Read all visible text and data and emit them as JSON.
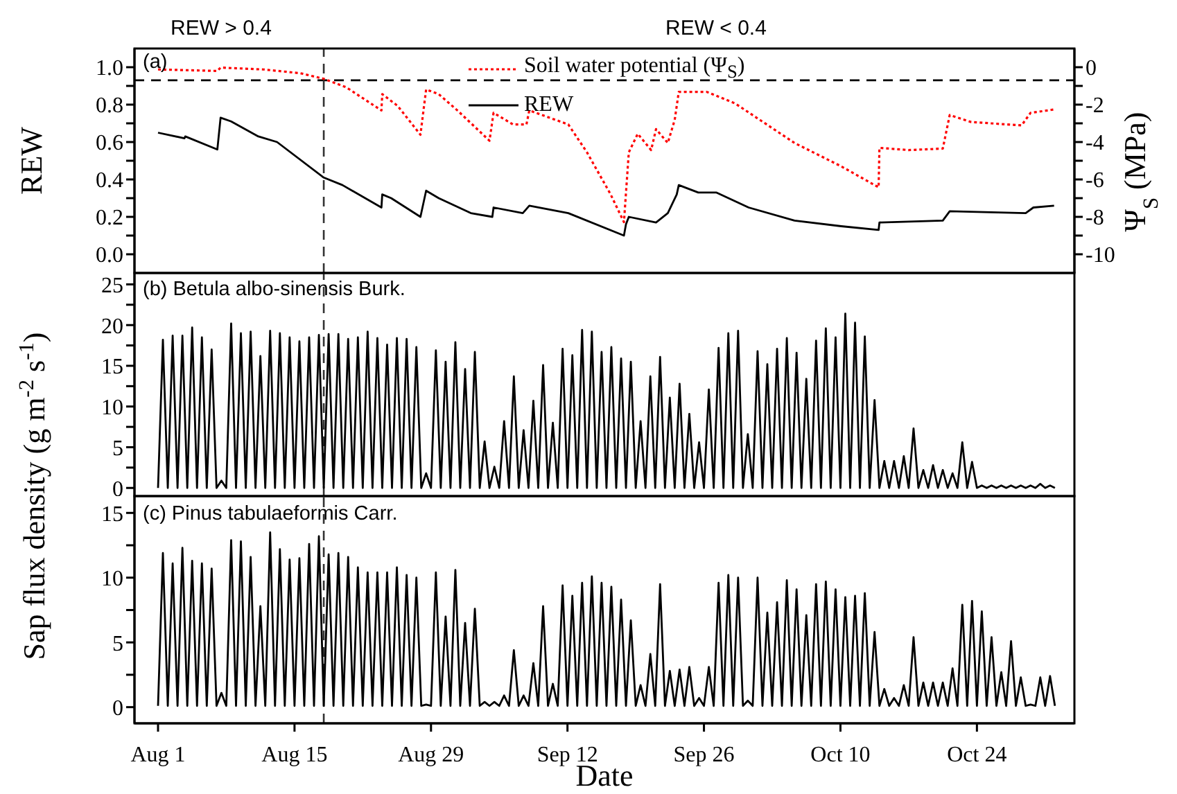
{
  "chart_data": [
    {
      "type": "line",
      "ylabel": "REW",
      "y2label": "Ψ$_{S}$ (MPa)",
      "annotations": [
        "(a)",
        "REW > 0.4",
        "REW < 0.4"
      ],
      "xlim": [
        "--07-29T14:00",
        "--11-03"
      ],
      "xticks": [
        {
          "value": "--08-01",
          "label": null
        },
        {
          "value": "--08-15",
          "label": null
        },
        {
          "value": "--08-29",
          "label": null
        },
        {
          "value": "--09-12",
          "label": null
        },
        {
          "value": "--09-26",
          "label": null
        },
        {
          "value": "--10-10",
          "label": null
        },
        {
          "value": "--10-24",
          "label": null
        }
      ],
      "ylim": [
        -0.1,
        1.1
      ],
      "yticks": [
        {
          "value": 0,
          "label": "0.0"
        },
        {
          "value": 0.1,
          "label": null
        },
        0.2,
        {
          "value": 0.3,
          "label": null
        },
        0.4,
        {
          "value": 0.5,
          "label": null
        },
        0.6,
        {
          "value": 0.7,
          "label": null
        },
        0.8,
        {
          "value": 0.9,
          "label": null
        },
        {
          "value": 1,
          "label": "1.0"
        }
      ],
      "y2lim": [
        -11,
        1
      ],
      "y2ticks": [
        -10,
        {
          "value": -9,
          "label": null
        },
        -8,
        {
          "value": -7,
          "label": null
        },
        -6,
        {
          "value": -5,
          "label": null
        },
        -4,
        {
          "value": -3,
          "label": null
        },
        -2,
        {
          "value": -1,
          "label": null
        },
        0
      ],
      "tick_labels": "y",
      "legend": "top",
      "ref_lines": [
        {
          "axis": "y",
          "value": 0.93,
          "color": "#000000",
          "line_style": "dashed"
        },
        {
          "axis": "x",
          "value": "--08-18",
          "color": "#333333",
          "line_style": "dashed"
        }
      ],
      "series": [
        {
          "name": "Soil water potential (Ψ$_{S}$)",
          "color": "#ff0000",
          "axis": "y2",
          "line_style": "dotted",
          "x": [
            "--08-01",
            "--08-07T02:00",
            "--08-07T10:00",
            "--08-11T19:00",
            "--08-15T14:00",
            "--08-18",
            "--08-20T07:00",
            "--08-23T22:00",
            "--08-24",
            "--08-25T14:00",
            "--08-27T22:00",
            "--08-28T12:00",
            "--08-29T19:00",
            "--08-31T17:00",
            "--09-04",
            "--09-04T10:00",
            "--09-06T10:00",
            "--09-07T19:00",
            "--09-08T02:00",
            "--09-12T02:00",
            "--09-14",
            "--09-16T10:00",
            "--09-17T19:00",
            "--09-18T07:00",
            "--09-19T05:00",
            "--09-20T14:00",
            "--09-21T02:00",
            "--09-22T07:00",
            "--09-23",
            "--09-23T10:00",
            "--09-26T07:00",
            "--09-29T05:00",
            "--10-05T07:00",
            "--10-10T02:00",
            "--10-13T22:00",
            "--10-14",
            "--10-17",
            "--10-20T12:00",
            "--10-21T05:00",
            "--10-23T10:00",
            "--10-28T14:00",
            "--10-29T12:00",
            "--10-31T22:00"
          ],
          "values": [
            -0.12,
            -0.2,
            -0.02,
            -0.12,
            -0.32,
            -0.62,
            -1.07,
            -2.31,
            -1.44,
            -2.07,
            -3.61,
            -1.19,
            -1.44,
            -2.31,
            -3.93,
            -2.44,
            -3.06,
            -3.06,
            -2.31,
            -3.06,
            -4.55,
            -6.79,
            -8.28,
            -4.55,
            -3.56,
            -4.43,
            -3.31,
            -4.05,
            -2.81,
            -1.32,
            -1.32,
            -1.94,
            -4.05,
            -5.3,
            -6.42,
            -4.31,
            -4.43,
            -4.35,
            -2.56,
            -2.93,
            -3.11,
            -2.44,
            -2.26
          ]
        },
        {
          "name": "REW",
          "color": "#000000",
          "line_style": "solid",
          "x": [
            "--08-01",
            "--08-03T17:00",
            "--08-03T19:00",
            "--08-07T02:00",
            "--08-07T10:00",
            "--08-08T12:00",
            "--08-11T07:00",
            "--08-13T05:00",
            "--08-18",
            "--08-19T22:00",
            "--08-23T22:00",
            "--08-24",
            "--08-24T22:00",
            "--08-27T22:00",
            "--08-28T12:00",
            "--08-29T19:00",
            "--09-02T02:00",
            "--09-04T07:00",
            "--09-04T10:00",
            "--09-07T10:00",
            "--09-08T02:00",
            "--09-12T02:00",
            "--09-17T19:00",
            "--09-18",
            "--09-18T07:00",
            "--09-21T02:00",
            "--09-22T07:00",
            "--09-23T05:00",
            "--09-23T10:00",
            "--09-25T10:00",
            "--09-27T07:00",
            "--09-30T14:00",
            "--10-05T07:00",
            "--10-10T02:00",
            "--10-13T22:00",
            "--10-14",
            "--10-20T12:00",
            "--10-21T05:00",
            "--10-29",
            "--10-29T19:00",
            "--10-31T22:00"
          ],
          "values": [
            0.65,
            0.62,
            0.63,
            0.56,
            0.73,
            0.71,
            0.63,
            0.6,
            0.41,
            0.37,
            0.25,
            0.32,
            0.3,
            0.2,
            0.34,
            0.3,
            0.22,
            0.2,
            0.25,
            0.22,
            0.26,
            0.22,
            0.1,
            0.16,
            0.2,
            0.17,
            0.22,
            0.32,
            0.37,
            0.33,
            0.33,
            0.25,
            0.18,
            0.15,
            0.13,
            0.17,
            0.18,
            0.23,
            0.22,
            0.25,
            0.26
          ]
        }
      ]
    },
    {
      "type": "line",
      "ylabel": "Sap flux density (g m$^{-2}$ s$^{-1}$)",
      "annotations": [
        "(b) Betula albo-sinensis Burk."
      ],
      "xlim": [
        "--07-29T14:00",
        "--11-03"
      ],
      "xticks": [
        {
          "value": "--08-01",
          "label": null
        },
        {
          "value": "--08-15",
          "label": null
        },
        {
          "value": "--08-29",
          "label": null
        },
        {
          "value": "--09-12",
          "label": null
        },
        {
          "value": "--09-26",
          "label": null
        },
        {
          "value": "--10-10",
          "label": null
        },
        {
          "value": "--10-24",
          "label": null
        }
      ],
      "ylim": [
        -1,
        26.4
      ],
      "yticks": [
        0,
        {
          "value": 2.5,
          "label": null
        },
        5,
        {
          "value": 7.5,
          "label": null
        },
        10,
        {
          "value": 12.5,
          "label": null
        },
        15,
        {
          "value": 17.5,
          "label": null
        },
        20,
        {
          "value": 22.5,
          "label": null
        },
        25
      ],
      "tick_labels": "y",
      "ref_lines": [
        {
          "axis": "x",
          "value": "--08-18",
          "color": "#333333",
          "line_style": "dashed"
        }
      ],
      "x": [
        "--08-01",
        "--08-01T12:00",
        "--08-02",
        "--08-02T12:00",
        "--08-03",
        "--08-03T12:00",
        "--08-04",
        "--08-04T12:00",
        "--08-05",
        "--08-05T12:00",
        "--08-06",
        "--08-06T12:00",
        "--08-07",
        "--08-07T12:00",
        "--08-08",
        "--08-08T12:00",
        "--08-09",
        "--08-09T12:00",
        "--08-10",
        "--08-10T12:00",
        "--08-11",
        "--08-11T12:00",
        "--08-12",
        "--08-12T12:00",
        "--08-13",
        "--08-13T12:00",
        "--08-14",
        "--08-14T12:00",
        "--08-15",
        "--08-15T12:00",
        "--08-16",
        "--08-16T12:00",
        "--08-17",
        "--08-17T12:00",
        "--08-18",
        "--08-18T12:00",
        "--08-19",
        "--08-19T12:00",
        "--08-20",
        "--08-20T12:00",
        "--08-21",
        "--08-21T12:00",
        "--08-22",
        "--08-22T12:00",
        "--08-23",
        "--08-23T12:00",
        "--08-24",
        "--08-24T12:00",
        "--08-25",
        "--08-25T12:00",
        "--08-26",
        "--08-26T12:00",
        "--08-27",
        "--08-27T12:00",
        "--08-28",
        "--08-28T12:00",
        "--08-29",
        "--08-29T12:00",
        "--08-30",
        "--08-30T12:00",
        "--08-31",
        "--08-31T12:00",
        "--09-01",
        "--09-01T12:00",
        "--09-02",
        "--09-02T12:00",
        "--09-03",
        "--09-03T12:00",
        "--09-04",
        "--09-04T12:00",
        "--09-05",
        "--09-05T12:00",
        "--09-06",
        "--09-06T12:00",
        "--09-07",
        "--09-07T12:00",
        "--09-08",
        "--09-08T12:00",
        "--09-09",
        "--09-09T12:00",
        "--09-10",
        "--09-10T12:00",
        "--09-11",
        "--09-11T12:00",
        "--09-12",
        "--09-12T12:00",
        "--09-13",
        "--09-13T12:00",
        "--09-14",
        "--09-14T12:00",
        "--09-15",
        "--09-15T12:00",
        "--09-16",
        "--09-16T12:00",
        "--09-17",
        "--09-17T12:00",
        "--09-18",
        "--09-18T12:00",
        "--09-19",
        "--09-19T12:00",
        "--09-20",
        "--09-20T12:00",
        "--09-21",
        "--09-21T12:00",
        "--09-22",
        "--09-22T12:00",
        "--09-23",
        "--09-23T12:00",
        "--09-24",
        "--09-24T12:00",
        "--09-25",
        "--09-25T12:00",
        "--09-26",
        "--09-26T12:00",
        "--09-27",
        "--09-27T12:00",
        "--09-28",
        "--09-28T12:00",
        "--09-29",
        "--09-29T12:00",
        "--09-30",
        "--09-30T12:00",
        "--10-01",
        "--10-01T12:00",
        "--10-02",
        "--10-02T12:00",
        "--10-03",
        "--10-03T12:00",
        "--10-04",
        "--10-04T12:00",
        "--10-05",
        "--10-05T12:00",
        "--10-06",
        "--10-06T12:00",
        "--10-07",
        "--10-07T12:00",
        "--10-08",
        "--10-08T12:00",
        "--10-09",
        "--10-09T12:00",
        "--10-10",
        "--10-10T12:00",
        "--10-11",
        "--10-11T12:00",
        "--10-12",
        "--10-12T12:00",
        "--10-13",
        "--10-13T12:00",
        "--10-14",
        "--10-14T12:00",
        "--10-15",
        "--10-15T12:00",
        "--10-16",
        "--10-16T12:00",
        "--10-17",
        "--10-17T12:00",
        "--10-18",
        "--10-18T12:00",
        "--10-19",
        "--10-19T12:00",
        "--10-20",
        "--10-20T12:00",
        "--10-21",
        "--10-21T12:00",
        "--10-22",
        "--10-22T12:00",
        "--10-23",
        "--10-23T12:00",
        "--10-24",
        "--10-24T12:00",
        "--10-25",
        "--10-25T12:00",
        "--10-26",
        "--10-26T12:00",
        "--10-27",
        "--10-27T12:00",
        "--10-28",
        "--10-28T12:00",
        "--10-29",
        "--10-29T12:00",
        "--10-30",
        "--10-30T12:00",
        "--10-31",
        "--10-31T12:00",
        "--11-01"
      ],
      "series": [
        {
          "color": "#000000",
          "values": [
            0,
            18.2,
            0,
            18.7,
            0,
            18.7,
            0,
            19.7,
            0,
            18.5,
            0,
            17.0,
            0,
            0.9,
            0,
            20.2,
            0,
            19.0,
            0,
            19.2,
            0,
            16.2,
            0,
            19.3,
            0,
            19.0,
            0,
            18.5,
            0,
            18.0,
            0,
            18.5,
            0,
            18.8,
            0,
            18.9,
            0,
            18.9,
            0,
            18.3,
            0,
            18.5,
            0,
            19.2,
            0,
            18.4,
            0,
            17.6,
            0,
            18.4,
            0,
            18.3,
            0,
            17.3,
            0,
            1.8,
            0,
            16.9,
            0,
            15.5,
            0,
            17.9,
            0,
            14.6,
            0,
            16.7,
            0,
            5.7,
            0,
            2.6,
            0,
            8.2,
            0,
            13.7,
            0,
            7.1,
            0,
            10.7,
            0,
            15.1,
            0,
            8.0,
            0,
            17.1,
            0,
            16.3,
            0,
            19.4,
            0,
            19.2,
            0,
            16.7,
            0,
            17.3,
            0,
            15.9,
            0,
            15.5,
            0,
            8.2,
            0,
            13.7,
            0,
            16.1,
            0,
            11.1,
            0,
            12.8,
            0,
            9.1,
            0,
            5.6,
            0,
            12.1,
            0,
            17.2,
            0,
            19.0,
            0,
            19.3,
            0,
            6.6,
            0,
            16.8,
            0,
            15.2,
            0,
            17.1,
            0,
            18.4,
            0,
            16.6,
            0,
            13.4,
            0,
            18.1,
            0,
            19.6,
            0,
            18.5,
            0,
            21.4,
            0,
            20.3,
            0,
            18.6,
            0,
            10.8,
            0,
            3.3,
            0,
            3.3,
            0,
            3.9,
            0,
            7.3,
            0,
            2.2,
            0,
            2.8,
            0,
            2.2,
            0,
            1.8,
            0,
            5.6,
            0,
            3.2,
            0,
            0.3,
            0,
            0.3,
            0,
            0.3,
            0,
            0.3,
            0,
            0.3,
            0,
            0.3,
            0,
            0.5,
            0,
            0.3,
            0
          ]
        }
      ]
    },
    {
      "type": "line",
      "xlabel": "Date",
      "annotations": [
        "(c) Pinus tabulaeformis  Carr."
      ],
      "xlim": [
        "--07-29T14:00",
        "--11-03"
      ],
      "xticks": [
        {
          "value": "--08-01",
          "label": "Aug 1"
        },
        {
          "value": "--08-15",
          "label": "Aug 15"
        },
        {
          "value": "--08-29",
          "label": "Aug 29"
        },
        {
          "value": "--09-12",
          "label": "Sep 12"
        },
        {
          "value": "--09-26",
          "label": "Sep 26"
        },
        {
          "value": "--10-10",
          "label": "Oct 10"
        },
        {
          "value": "--10-24",
          "label": "Oct 24"
        }
      ],
      "ylim": [
        -1.25,
        16.3
      ],
      "yticks": [
        0,
        {
          "value": 2.5,
          "label": null
        },
        5,
        {
          "value": 7.5,
          "label": null
        },
        10,
        {
          "value": 12.5,
          "label": null
        },
        15
      ],
      "ref_lines": [
        {
          "axis": "x",
          "value": "--08-18",
          "color": "#333333",
          "line_style": "dashed"
        }
      ],
      "x": [
        "--08-01",
        "--08-01T12:00",
        "--08-02",
        "--08-02T12:00",
        "--08-03",
        "--08-03T12:00",
        "--08-04",
        "--08-04T12:00",
        "--08-05",
        "--08-05T12:00",
        "--08-06",
        "--08-06T12:00",
        "--08-07",
        "--08-07T12:00",
        "--08-08",
        "--08-08T12:00",
        "--08-09",
        "--08-09T12:00",
        "--08-10",
        "--08-10T12:00",
        "--08-11",
        "--08-11T12:00",
        "--08-12",
        "--08-12T12:00",
        "--08-13",
        "--08-13T12:00",
        "--08-14",
        "--08-14T12:00",
        "--08-15",
        "--08-15T12:00",
        "--08-16",
        "--08-16T12:00",
        "--08-17",
        "--08-17T12:00",
        "--08-18",
        "--08-18T12:00",
        "--08-19",
        "--08-19T12:00",
        "--08-20",
        "--08-20T12:00",
        "--08-21",
        "--08-21T12:00",
        "--08-22",
        "--08-22T12:00",
        "--08-23",
        "--08-23T12:00",
        "--08-24",
        "--08-24T12:00",
        "--08-25",
        "--08-25T12:00",
        "--08-26",
        "--08-26T12:00",
        "--08-27",
        "--08-27T12:00",
        "--08-28",
        "--08-28T12:00",
        "--08-29",
        "--08-29T12:00",
        "--08-30",
        "--08-30T12:00",
        "--08-31",
        "--08-31T12:00",
        "--09-01",
        "--09-01T12:00",
        "--09-02",
        "--09-02T12:00",
        "--09-03",
        "--09-03T12:00",
        "--09-04",
        "--09-04T12:00",
        "--09-05",
        "--09-05T12:00",
        "--09-06",
        "--09-06T12:00",
        "--09-07",
        "--09-07T12:00",
        "--09-08",
        "--09-08T12:00",
        "--09-09",
        "--09-09T12:00",
        "--09-10",
        "--09-10T12:00",
        "--09-11",
        "--09-11T12:00",
        "--09-12",
        "--09-12T12:00",
        "--09-13",
        "--09-13T12:00",
        "--09-14",
        "--09-14T12:00",
        "--09-15",
        "--09-15T12:00",
        "--09-16",
        "--09-16T12:00",
        "--09-17",
        "--09-17T12:00",
        "--09-18",
        "--09-18T12:00",
        "--09-19",
        "--09-19T12:00",
        "--09-20",
        "--09-20T12:00",
        "--09-21",
        "--09-21T12:00",
        "--09-22",
        "--09-22T12:00",
        "--09-23",
        "--09-23T12:00",
        "--09-24",
        "--09-24T12:00",
        "--09-25",
        "--09-25T12:00",
        "--09-26",
        "--09-26T12:00",
        "--09-27",
        "--09-27T12:00",
        "--09-28",
        "--09-28T12:00",
        "--09-29",
        "--09-29T12:00",
        "--09-30",
        "--09-30T12:00",
        "--10-01",
        "--10-01T12:00",
        "--10-02",
        "--10-02T12:00",
        "--10-03",
        "--10-03T12:00",
        "--10-04",
        "--10-04T12:00",
        "--10-05",
        "--10-05T12:00",
        "--10-06",
        "--10-06T12:00",
        "--10-07",
        "--10-07T12:00",
        "--10-08",
        "--10-08T12:00",
        "--10-09",
        "--10-09T12:00",
        "--10-10",
        "--10-10T12:00",
        "--10-11",
        "--10-11T12:00",
        "--10-12",
        "--10-12T12:00",
        "--10-13",
        "--10-13T12:00",
        "--10-14",
        "--10-14T12:00",
        "--10-15",
        "--10-15T12:00",
        "--10-16",
        "--10-16T12:00",
        "--10-17",
        "--10-17T12:00",
        "--10-18",
        "--10-18T12:00",
        "--10-19",
        "--10-19T12:00",
        "--10-20",
        "--10-20T12:00",
        "--10-21",
        "--10-21T12:00",
        "--10-22",
        "--10-22T12:00",
        "--10-23",
        "--10-23T12:00",
        "--10-24",
        "--10-24T12:00",
        "--10-25",
        "--10-25T12:00",
        "--10-26",
        "--10-26T12:00",
        "--10-27",
        "--10-27T12:00",
        "--10-28",
        "--10-28T12:00",
        "--10-29",
        "--10-29T12:00",
        "--10-30",
        "--10-30T12:00",
        "--10-31",
        "--10-31T12:00",
        "--11-01"
      ],
      "series": [
        {
          "color": "#000000",
          "values": [
            0.1,
            11.9,
            0.1,
            11.1,
            0.1,
            12.3,
            0.1,
            11.3,
            0.1,
            11.1,
            0.1,
            10.7,
            0.1,
            1.1,
            0.1,
            12.9,
            0.1,
            12.8,
            0.1,
            11.6,
            0.1,
            7.8,
            0.1,
            13.5,
            0.1,
            12.2,
            0.1,
            11.4,
            0.1,
            11.5,
            0.1,
            12.6,
            0.1,
            13.2,
            0.1,
            11.8,
            0.1,
            11.9,
            0.1,
            11.6,
            0.1,
            10.8,
            0.1,
            10.4,
            0.1,
            10.4,
            0.1,
            10.4,
            0.1,
            10.8,
            0.1,
            10.2,
            0.1,
            10.0,
            0.1,
            0.2,
            0.1,
            10.4,
            0.1,
            7.0,
            0.1,
            10.6,
            0.1,
            6.5,
            0.1,
            7.6,
            0.1,
            0.4,
            0.1,
            0.4,
            0.1,
            0.9,
            0.1,
            4.4,
            0.1,
            0.9,
            0.1,
            3.4,
            0.1,
            7.8,
            0.1,
            1.8,
            0.1,
            9.4,
            0.1,
            8.6,
            0.1,
            9.6,
            0.1,
            10.1,
            0.1,
            9.6,
            0.1,
            9.3,
            0.1,
            8.3,
            0.1,
            6.7,
            0.1,
            1.7,
            0.1,
            4.1,
            0.1,
            9.5,
            0.1,
            2.8,
            0.1,
            2.9,
            0.1,
            3.1,
            0.1,
            0.7,
            0.1,
            3.1,
            0.1,
            9.6,
            0.1,
            10.2,
            0.1,
            10.0,
            0.1,
            0.5,
            0.1,
            10.0,
            0.1,
            7.3,
            0.1,
            8.1,
            0.1,
            9.8,
            0.1,
            9.1,
            0.1,
            7.1,
            0.1,
            9.5,
            0.1,
            9.7,
            0.1,
            9.1,
            0.1,
            8.5,
            0.1,
            8.6,
            0.1,
            8.8,
            0.1,
            5.8,
            0.1,
            1.4,
            0.1,
            0.7,
            0.1,
            1.7,
            0.1,
            5.4,
            0.1,
            1.9,
            0.1,
            1.9,
            0.1,
            1.9,
            0.1,
            3.0,
            0.1,
            7.9,
            0.1,
            8.2,
            0.1,
            7.4,
            0.1,
            5.4,
            0.1,
            2.7,
            0.1,
            5.1,
            0.1,
            2.3,
            0.1,
            0.2,
            0.1,
            2.3,
            0.1,
            2.4,
            0.1
          ]
        }
      ]
    }
  ]
}
